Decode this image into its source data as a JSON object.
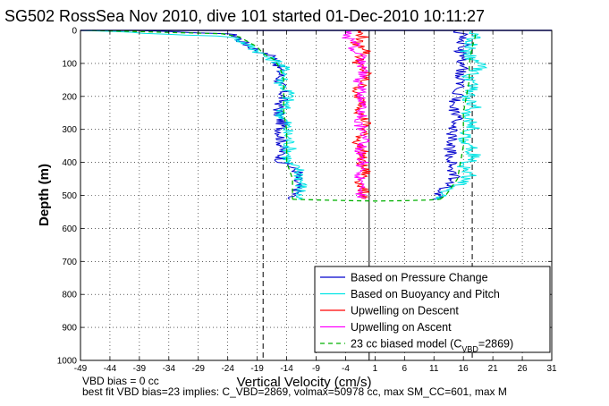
{
  "chart_data": {
    "type": "line",
    "title": "SG502 RossSea Nov 2010, dive 101 started 01-Dec-2010 10:11:27",
    "xlabel": "Vertical Velocity (cm/s)",
    "ylabel": "Depth (m)",
    "xlim": [
      -49,
      31
    ],
    "ylim": [
      1000,
      0
    ],
    "x_ticks": [
      "-49",
      "-44",
      "-39",
      "-34",
      "-29",
      "-24",
      "-19",
      "-14",
      "-9",
      "-4",
      "1",
      "6",
      "11",
      "16",
      "21",
      "26",
      "31"
    ],
    "y_ticks": [
      "0",
      "100",
      "200",
      "300",
      "400",
      "500",
      "600",
      "700",
      "800",
      "900",
      "1000"
    ],
    "grid": true,
    "legend_position": "bottom-right",
    "series": [
      {
        "name": "Based on Pressure Change",
        "color": "#0000cc",
        "descent": {
          "depth": [
            0,
            10,
            20,
            30,
            40,
            50,
            60,
            70,
            80,
            100,
            130,
            160,
            190,
            220,
            250,
            280,
            310,
            340,
            370,
            400,
            410,
            430,
            460,
            490,
            505,
            512
          ],
          "velocity": [
            -40,
            -24,
            -22,
            -22,
            -21,
            -20,
            -19,
            -18,
            -16,
            -15.5,
            -15,
            -15.2,
            -14.5,
            -15,
            -15.5,
            -14.8,
            -15,
            -14.8,
            -14.8,
            -15,
            -13.5,
            -12,
            -12.5,
            -12,
            -13.5,
            -13.5
          ]
        },
        "ascent": {
          "depth": [
            512,
            495,
            470,
            440,
            410,
            380,
            350,
            320,
            290,
            260,
            230,
            200,
            170,
            140,
            110,
            80,
            60,
            40,
            20,
            0
          ],
          "velocity": [
            11.5,
            12,
            13.5,
            14.5,
            14,
            14,
            13.5,
            14,
            14.5,
            15,
            14,
            15,
            15.5,
            15,
            16,
            16,
            15.5,
            16,
            16,
            15
          ]
        }
      },
      {
        "name": "Based on Buoyancy and Pitch",
        "color": "#00e5e5",
        "descent": {
          "depth": [
            0,
            20,
            40,
            60,
            80,
            100,
            130,
            160,
            190,
            220,
            250,
            280,
            310,
            340,
            370,
            400,
            420,
            450,
            480,
            505,
            512
          ],
          "velocity": [
            -48,
            -23,
            -21,
            -19,
            -17.5,
            -15,
            -14,
            -15,
            -13.5,
            -14,
            -15,
            -14,
            -14,
            -13.5,
            -13.5,
            -14,
            -12,
            -11.5,
            -11.5,
            -12,
            -12
          ]
        },
        "ascent": {
          "depth": [
            512,
            495,
            470,
            440,
            410,
            380,
            350,
            320,
            290,
            260,
            230,
            200,
            170,
            140,
            110,
            80,
            60,
            40,
            20,
            0
          ],
          "velocity": [
            11.5,
            12.5,
            15,
            17,
            16,
            18,
            17,
            16,
            18,
            16,
            18,
            16.5,
            18,
            17,
            19,
            17,
            16.5,
            17.5,
            18,
            17
          ]
        }
      },
      {
        "name": "Upwelling on Descent",
        "color": "#ff0000",
        "depth": [
          0,
          20,
          40,
          60,
          80,
          100,
          130,
          160,
          190,
          220,
          250,
          280,
          310,
          340,
          370,
          400,
          430,
          460,
          490,
          510
        ],
        "velocity": [
          -2,
          -1,
          -2.5,
          0,
          -1.5,
          -2,
          -0.5,
          -1,
          -2.5,
          -1,
          -1.5,
          -0.5,
          -1,
          -2,
          -1,
          -1.5,
          -0.5,
          -1.5,
          -1,
          -0.5
        ]
      },
      {
        "name": "Upwelling on Ascent",
        "color": "#ff00ff",
        "depth": [
          510,
          490,
          460,
          430,
          400,
          370,
          340,
          310,
          280,
          250,
          220,
          190,
          160,
          130,
          100,
          80,
          60,
          40,
          20,
          0
        ],
        "velocity": [
          -1,
          -1.5,
          -1,
          -2,
          -1,
          -1.5,
          -1,
          -0.5,
          -2,
          -1,
          -1.5,
          -1,
          -2,
          -1,
          -1.5,
          -1,
          -3,
          -2,
          -4,
          -3
        ]
      },
      {
        "name": "23 cc biased model (C",
        "color": "#00b000",
        "dashed": true,
        "descent": {
          "depth": [
            0,
            10,
            20,
            30,
            50,
            70,
            90,
            120,
            150,
            200,
            250,
            300,
            350,
            400,
            450,
            500,
            512
          ],
          "velocity": [
            -47,
            -25,
            -22,
            -21,
            -19,
            -18,
            -16,
            -15,
            -14.5,
            -14.5,
            -14.5,
            -14,
            -14,
            -14,
            -13,
            -13,
            -13
          ]
        },
        "bottom": {
          "depth": [
            512,
            514,
            516,
            517,
            516,
            514,
            512
          ],
          "velocity": [
            -13,
            -8,
            -3,
            1,
            6,
            10,
            12
          ]
        },
        "ascent": {
          "depth": [
            512,
            500,
            450,
            400,
            350,
            300,
            250,
            200,
            150,
            100,
            50,
            20,
            0
          ],
          "velocity": [
            12,
            13,
            15,
            15.5,
            16,
            16,
            16,
            16.5,
            17,
            17,
            17.5,
            18,
            18
          ]
        }
      }
    ],
    "reference_lines": {
      "black_solid_x": 0,
      "black_dashed_x": [
        -18,
        17.5
      ],
      "top_blue_line_depth": 0
    },
    "legend_suffix_sub": "VBD",
    "legend_suffix_tail": "=2869)"
  },
  "footnotes": {
    "line1": "VBD bias = 0 cc",
    "line2": "best fit VBD bias=23 implies: C_VBD=2869, volmax=50978 cc, max SM_CC=601, max M"
  }
}
